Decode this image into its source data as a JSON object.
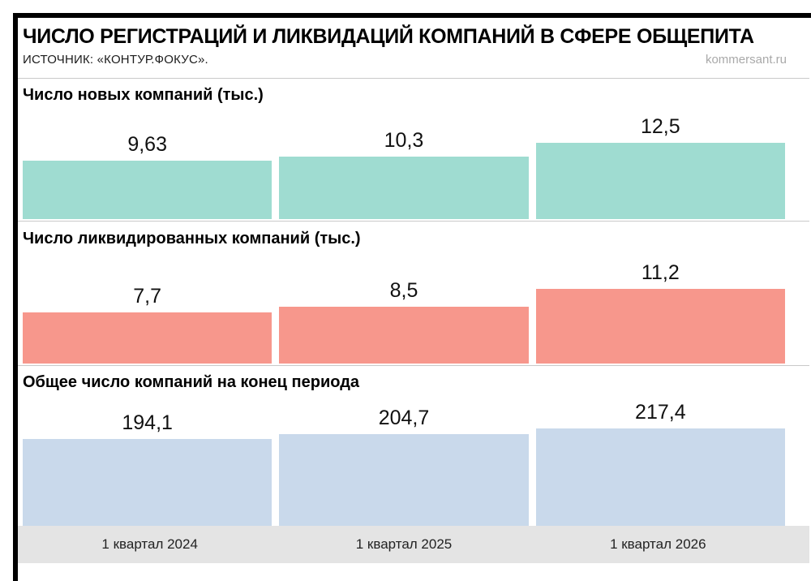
{
  "header": {
    "title": "ЧИСЛО РЕГИСТРАЦИЙ И ЛИКВИДАЦИЙ КОМПАНИЙ В СФЕРЕ ОБЩЕПИТА",
    "source": "ИСТОЧНИК: «КОНТУР.ФОКУС».",
    "site": "kommersant.ru"
  },
  "colors": {
    "new_companies": "#9fdcd1",
    "liquidated_companies": "#f7978c",
    "total_companies": "#c9d9eb",
    "footer_bg": "#e4e4e4"
  },
  "footer": {
    "categories": [
      "1 квартал 2024",
      "1 квартал 2025",
      "1 квартал 2026"
    ]
  },
  "chart_data": [
    {
      "type": "bar",
      "title": "Число новых компаний (тыс.)",
      "categories": [
        "1 квартал 2024",
        "1 квартал 2025",
        "1 квартал 2026"
      ],
      "values": [
        9.63,
        10.3,
        12.5
      ],
      "value_labels": [
        "9,63",
        "10,3",
        "12,5"
      ],
      "color": "#9fdcd1",
      "legend": "none",
      "grid": false
    },
    {
      "type": "bar",
      "title": "Число ликвидированных компаний (тыс.)",
      "categories": [
        "1 квартал 2024",
        "1 квартал 2025",
        "1 квартал 2026"
      ],
      "values": [
        7.7,
        8.5,
        11.2
      ],
      "value_labels": [
        "7,7",
        "8,5",
        "11,2"
      ],
      "color": "#f7978c",
      "legend": "none",
      "grid": false
    },
    {
      "type": "bar",
      "title": "Общее число компаний на конец периода",
      "categories": [
        "1 квартал 2024",
        "1 квартал 2025",
        "1 квартал 2026"
      ],
      "values": [
        194.1,
        204.7,
        217.4
      ],
      "value_labels": [
        "194,1",
        "204,7",
        "217,4"
      ],
      "color": "#c9d9eb",
      "legend": "none",
      "grid": false
    }
  ]
}
